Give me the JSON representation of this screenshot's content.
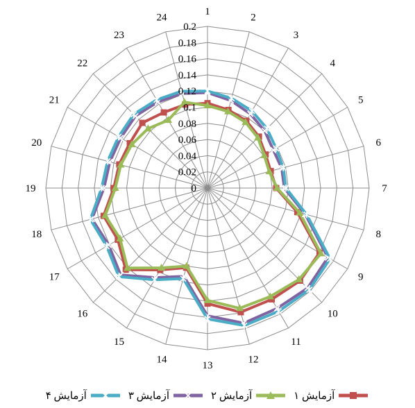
{
  "chart_data": {
    "type": "radar",
    "categories": [
      "1",
      "2",
      "3",
      "4",
      "5",
      "6",
      "7",
      "8",
      "9",
      "10",
      "11",
      "12",
      "13",
      "14",
      "15",
      "16",
      "17",
      "18",
      "19",
      "20",
      "21",
      "22",
      "23",
      "24"
    ],
    "tick_labels": [
      "0",
      "0.02",
      "0.04",
      "0.06",
      "0.08",
      "0.1",
      "0.12",
      "0.14",
      "0.16",
      "0.18",
      "0.2"
    ],
    "rlim": [
      0,
      0.2
    ],
    "grid": true,
    "legend_position": "bottom",
    "series": [
      {
        "name": "آزمایش ۱",
        "color": "#C0504D",
        "marker": "square",
        "values": [
          0.105,
          0.1,
          0.096,
          0.09,
          0.083,
          0.081,
          0.085,
          0.115,
          0.16,
          0.162,
          0.159,
          0.159,
          0.143,
          0.102,
          0.117,
          0.143,
          0.128,
          0.133,
          0.116,
          0.113,
          0.111,
          0.114,
          0.108,
          0.107
        ]
      },
      {
        "name": "آزمایش ۲",
        "color": "#9BBB59",
        "marker": "triangle",
        "values": [
          0.102,
          0.098,
          0.094,
          0.088,
          0.081,
          0.079,
          0.086,
          0.118,
          0.162,
          0.16,
          0.155,
          0.154,
          0.139,
          0.1,
          0.114,
          0.14,
          0.125,
          0.131,
          0.114,
          0.111,
          0.108,
          0.104,
          0.097,
          0.11
        ]
      },
      {
        "name": "آزمایش ۳",
        "color": "#8064A2",
        "marker": "x",
        "values": [
          0.118,
          0.112,
          0.106,
          0.1,
          0.094,
          0.095,
          0.095,
          0.125,
          0.172,
          0.175,
          0.172,
          0.173,
          0.158,
          0.113,
          0.128,
          0.152,
          0.141,
          0.148,
          0.128,
          0.125,
          0.124,
          0.126,
          0.123,
          0.121
        ]
      },
      {
        "name": "آزمایش ۴",
        "color": "#4BACC6",
        "marker": "star",
        "values": [
          0.12,
          0.115,
          0.11,
          0.104,
          0.098,
          0.097,
          0.097,
          0.127,
          0.175,
          0.178,
          0.176,
          0.176,
          0.162,
          0.116,
          0.131,
          0.155,
          0.144,
          0.15,
          0.131,
          0.128,
          0.127,
          0.129,
          0.126,
          0.124
        ]
      }
    ]
  }
}
